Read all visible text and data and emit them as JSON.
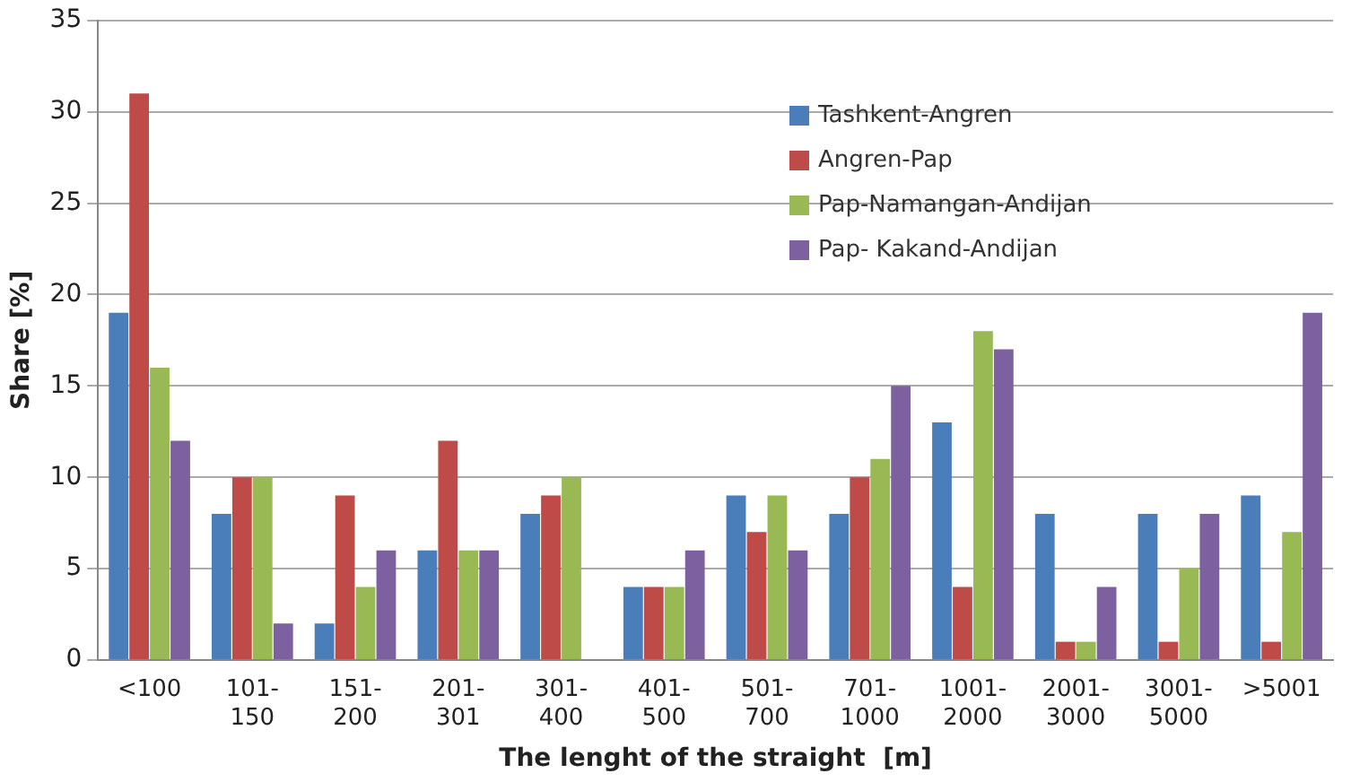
{
  "chart_data": {
    "type": "bar",
    "xlabel": "The lenght of the straight  [m]",
    "ylabel": "Share [%]",
    "categories": [
      "<100",
      "101-150",
      "151-200",
      "201-301",
      "301-400",
      "401-500",
      "501-700",
      "701-1000",
      "1001-2000",
      "2001-3000",
      "3001-5000",
      ">5001"
    ],
    "series": [
      {
        "name": "Tashkent-Angren",
        "color": "#4a7ebb",
        "values": [
          19,
          8,
          2,
          6,
          8,
          4,
          9,
          8,
          13,
          8,
          8,
          9
        ]
      },
      {
        "name": "Angren-Pap",
        "color": "#be4b48",
        "values": [
          31,
          10,
          9,
          12,
          9,
          4,
          7,
          10,
          4,
          1,
          1,
          1
        ]
      },
      {
        "name": "Pap-Namangan-Andijan",
        "color": "#98b954",
        "values": [
          16,
          10,
          4,
          6,
          10,
          4,
          9,
          11,
          18,
          1,
          5,
          7
        ]
      },
      {
        "name": "Pap- Kakand-Andijan",
        "color": "#7d60a0",
        "values": [
          12,
          2,
          6,
          6,
          0,
          6,
          6,
          15,
          17,
          4,
          8,
          19
        ]
      }
    ],
    "ylim": [
      0,
      35
    ],
    "yticks": [
      0,
      5,
      10,
      15,
      20,
      25,
      30,
      35
    ],
    "grid": "y",
    "legend": "top right"
  }
}
